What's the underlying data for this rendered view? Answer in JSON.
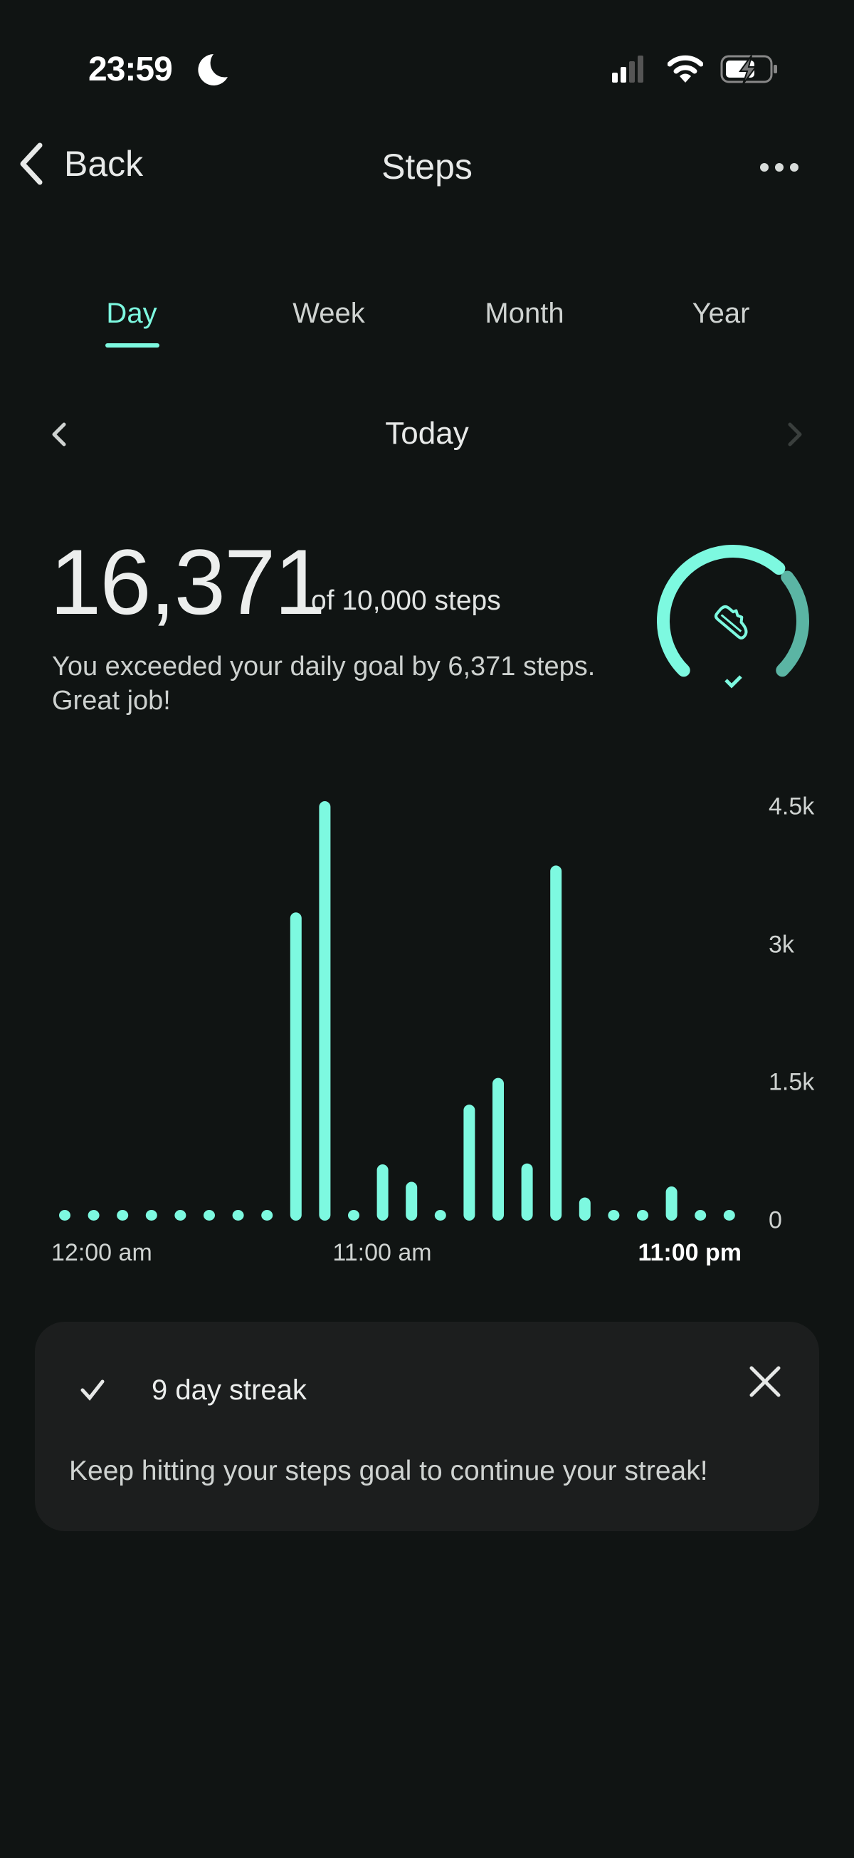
{
  "status_bar": {
    "time": "23:59",
    "icons": [
      "moon-icon",
      "signal-icon",
      "wifi-icon",
      "battery-charging-icon"
    ]
  },
  "header": {
    "back_label": "Back",
    "title": "Steps",
    "more_icon": "more-horizontal-icon"
  },
  "tabs": [
    {
      "label": "Day",
      "active": true
    },
    {
      "label": "Week",
      "active": false
    },
    {
      "label": "Month",
      "active": false
    },
    {
      "label": "Year",
      "active": false
    }
  ],
  "date_nav": {
    "label": "Today",
    "prev_enabled": true,
    "next_enabled": false
  },
  "summary": {
    "steps": "16,371",
    "goal_text": "of 10,000 steps",
    "message": "You exceeded your daily goal by 6,371 steps. Great job!",
    "ring_progress_fraction": 0.667,
    "goal_met": true
  },
  "colors": {
    "accent": "#7df9e0",
    "accent_dim": "#5bb5a4",
    "background": "#101413",
    "card": "#1c1e1e"
  },
  "chart_data": {
    "type": "bar",
    "x": [
      0,
      1,
      2,
      3,
      4,
      5,
      6,
      7,
      8,
      9,
      10,
      11,
      12,
      13,
      14,
      15,
      16,
      17,
      18,
      19,
      20,
      21,
      22,
      23
    ],
    "values": [
      0,
      0,
      0,
      0,
      0,
      0,
      0,
      0,
      3290,
      4500,
      0,
      550,
      360,
      120,
      1200,
      1490,
      560,
      3800,
      190,
      0,
      0,
      310,
      0,
      0
    ],
    "ylim": [
      0,
      4500
    ],
    "yticks": [
      {
        "value": 0,
        "label": "0"
      },
      {
        "value": 1500,
        "label": "1.5k"
      },
      {
        "value": 3000,
        "label": "3k"
      },
      {
        "value": 4500,
        "label": "4.5k"
      }
    ],
    "xticks": [
      {
        "hour": 0,
        "label": "12:00 am"
      },
      {
        "hour": 11,
        "label": "11:00 am"
      },
      {
        "hour": 23,
        "label": "11:00 pm"
      }
    ],
    "grid": false
  },
  "streak_card": {
    "title": "9 day streak",
    "body": "Keep hitting your steps goal to continue your streak!"
  }
}
